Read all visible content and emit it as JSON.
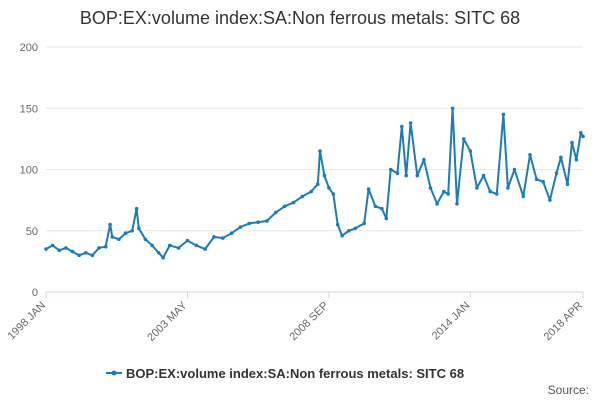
{
  "chart_data": {
    "type": "line",
    "title": "BOP:EX:volume index:SA:Non ferrous metals: SITC 68",
    "xlabel": "",
    "ylabel": "",
    "ylim": [
      0,
      200
    ],
    "yticks": [
      0,
      50,
      100,
      150,
      200
    ],
    "grid": true,
    "legend_position": "bottom",
    "color": "#1f7bb6",
    "x_range": [
      "1998-01",
      "2018-04"
    ],
    "xticks": [
      {
        "label": "1998 JAN",
        "date": "1998-01"
      },
      {
        "label": "2003 MAY",
        "date": "2003-05"
      },
      {
        "label": "2008 SEP",
        "date": "2008-09"
      },
      {
        "label": "2014 JAN",
        "date": "2014-01"
      },
      {
        "label": "2018 APR",
        "date": "2018-04"
      }
    ],
    "series": [
      {
        "name": "BOP:EX:volume index:SA:Non ferrous metals: SITC 68",
        "points": [
          [
            "1998-01",
            35
          ],
          [
            "1998-04",
            38
          ],
          [
            "1998-07",
            34
          ],
          [
            "1998-10",
            36
          ],
          [
            "1999-01",
            33
          ],
          [
            "1999-04",
            30
          ],
          [
            "1999-07",
            32
          ],
          [
            "1999-10",
            30
          ],
          [
            "2000-01",
            36
          ],
          [
            "2000-04",
            37
          ],
          [
            "2000-06",
            55
          ],
          [
            "2000-07",
            45
          ],
          [
            "2000-10",
            43
          ],
          [
            "2001-01",
            48
          ],
          [
            "2001-04",
            50
          ],
          [
            "2001-06",
            68
          ],
          [
            "2001-07",
            52
          ],
          [
            "2001-10",
            43
          ],
          [
            "2002-01",
            38
          ],
          [
            "2002-04",
            32
          ],
          [
            "2002-06",
            28
          ],
          [
            "2002-09",
            38
          ],
          [
            "2003-01",
            36
          ],
          [
            "2003-05",
            42
          ],
          [
            "2003-09",
            38
          ],
          [
            "2004-01",
            35
          ],
          [
            "2004-05",
            45
          ],
          [
            "2004-09",
            44
          ],
          [
            "2005-01",
            48
          ],
          [
            "2005-05",
            53
          ],
          [
            "2005-09",
            56
          ],
          [
            "2006-01",
            57
          ],
          [
            "2006-05",
            58
          ],
          [
            "2006-09",
            65
          ],
          [
            "2007-01",
            70
          ],
          [
            "2007-05",
            73
          ],
          [
            "2007-09",
            78
          ],
          [
            "2008-01",
            82
          ],
          [
            "2008-04",
            88
          ],
          [
            "2008-05",
            115
          ],
          [
            "2008-07",
            95
          ],
          [
            "2008-09",
            85
          ],
          [
            "2008-11",
            80
          ],
          [
            "2009-01",
            55
          ],
          [
            "2009-03",
            46
          ],
          [
            "2009-06",
            50
          ],
          [
            "2009-09",
            52
          ],
          [
            "2010-01",
            56
          ],
          [
            "2010-03",
            84
          ],
          [
            "2010-06",
            70
          ],
          [
            "2010-09",
            68
          ],
          [
            "2010-11",
            60
          ],
          [
            "2011-01",
            100
          ],
          [
            "2011-04",
            97
          ],
          [
            "2011-06",
            135
          ],
          [
            "2011-08",
            95
          ],
          [
            "2011-10",
            138
          ],
          [
            "2012-01",
            95
          ],
          [
            "2012-04",
            108
          ],
          [
            "2012-07",
            85
          ],
          [
            "2012-10",
            72
          ],
          [
            "2013-01",
            82
          ],
          [
            "2013-03",
            80
          ],
          [
            "2013-05",
            150
          ],
          [
            "2013-07",
            72
          ],
          [
            "2013-10",
            125
          ],
          [
            "2014-01",
            115
          ],
          [
            "2014-04",
            85
          ],
          [
            "2014-07",
            95
          ],
          [
            "2014-10",
            82
          ],
          [
            "2015-01",
            80
          ],
          [
            "2015-04",
            145
          ],
          [
            "2015-06",
            85
          ],
          [
            "2015-09",
            100
          ],
          [
            "2016-01",
            78
          ],
          [
            "2016-04",
            112
          ],
          [
            "2016-07",
            92
          ],
          [
            "2016-10",
            90
          ],
          [
            "2017-01",
            75
          ],
          [
            "2017-04",
            97
          ],
          [
            "2017-06",
            110
          ],
          [
            "2017-09",
            88
          ],
          [
            "2017-11",
            122
          ],
          [
            "2018-01",
            108
          ],
          [
            "2018-03",
            130
          ],
          [
            "2018-04",
            127
          ]
        ]
      }
    ]
  },
  "legend": {
    "label": "BOP:EX:volume index:SA:Non ferrous metals: SITC 68"
  },
  "footer": {
    "source_label": "Source:"
  }
}
